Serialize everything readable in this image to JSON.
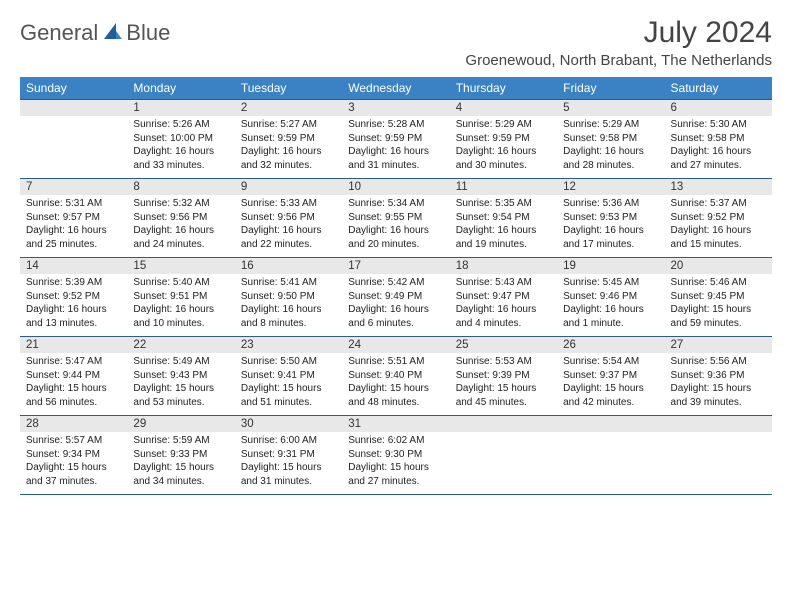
{
  "logo": {
    "general": "General",
    "blue": "Blue"
  },
  "title": "July 2024",
  "location": "Groenewoud, North Brabant, The Netherlands",
  "days": [
    "Sunday",
    "Monday",
    "Tuesday",
    "Wednesday",
    "Thursday",
    "Friday",
    "Saturday"
  ],
  "colors": {
    "header_bg": "#3b82c4",
    "header_text": "#ffffff",
    "daynum_bg": "#e8e8e8",
    "border": "#2a5d8f",
    "logo_gray": "#555555",
    "logo_blue": "#3b7fbf"
  },
  "grid": [
    [
      {
        "num": "",
        "lines": []
      },
      {
        "num": "1",
        "lines": [
          "Sunrise: 5:26 AM",
          "Sunset: 10:00 PM",
          "Daylight: 16 hours",
          "and 33 minutes."
        ]
      },
      {
        "num": "2",
        "lines": [
          "Sunrise: 5:27 AM",
          "Sunset: 9:59 PM",
          "Daylight: 16 hours",
          "and 32 minutes."
        ]
      },
      {
        "num": "3",
        "lines": [
          "Sunrise: 5:28 AM",
          "Sunset: 9:59 PM",
          "Daylight: 16 hours",
          "and 31 minutes."
        ]
      },
      {
        "num": "4",
        "lines": [
          "Sunrise: 5:29 AM",
          "Sunset: 9:59 PM",
          "Daylight: 16 hours",
          "and 30 minutes."
        ]
      },
      {
        "num": "5",
        "lines": [
          "Sunrise: 5:29 AM",
          "Sunset: 9:58 PM",
          "Daylight: 16 hours",
          "and 28 minutes."
        ]
      },
      {
        "num": "6",
        "lines": [
          "Sunrise: 5:30 AM",
          "Sunset: 9:58 PM",
          "Daylight: 16 hours",
          "and 27 minutes."
        ]
      }
    ],
    [
      {
        "num": "7",
        "lines": [
          "Sunrise: 5:31 AM",
          "Sunset: 9:57 PM",
          "Daylight: 16 hours",
          "and 25 minutes."
        ]
      },
      {
        "num": "8",
        "lines": [
          "Sunrise: 5:32 AM",
          "Sunset: 9:56 PM",
          "Daylight: 16 hours",
          "and 24 minutes."
        ]
      },
      {
        "num": "9",
        "lines": [
          "Sunrise: 5:33 AM",
          "Sunset: 9:56 PM",
          "Daylight: 16 hours",
          "and 22 minutes."
        ]
      },
      {
        "num": "10",
        "lines": [
          "Sunrise: 5:34 AM",
          "Sunset: 9:55 PM",
          "Daylight: 16 hours",
          "and 20 minutes."
        ]
      },
      {
        "num": "11",
        "lines": [
          "Sunrise: 5:35 AM",
          "Sunset: 9:54 PM",
          "Daylight: 16 hours",
          "and 19 minutes."
        ]
      },
      {
        "num": "12",
        "lines": [
          "Sunrise: 5:36 AM",
          "Sunset: 9:53 PM",
          "Daylight: 16 hours",
          "and 17 minutes."
        ]
      },
      {
        "num": "13",
        "lines": [
          "Sunrise: 5:37 AM",
          "Sunset: 9:52 PM",
          "Daylight: 16 hours",
          "and 15 minutes."
        ]
      }
    ],
    [
      {
        "num": "14",
        "lines": [
          "Sunrise: 5:39 AM",
          "Sunset: 9:52 PM",
          "Daylight: 16 hours",
          "and 13 minutes."
        ]
      },
      {
        "num": "15",
        "lines": [
          "Sunrise: 5:40 AM",
          "Sunset: 9:51 PM",
          "Daylight: 16 hours",
          "and 10 minutes."
        ]
      },
      {
        "num": "16",
        "lines": [
          "Sunrise: 5:41 AM",
          "Sunset: 9:50 PM",
          "Daylight: 16 hours",
          "and 8 minutes."
        ]
      },
      {
        "num": "17",
        "lines": [
          "Sunrise: 5:42 AM",
          "Sunset: 9:49 PM",
          "Daylight: 16 hours",
          "and 6 minutes."
        ]
      },
      {
        "num": "18",
        "lines": [
          "Sunrise: 5:43 AM",
          "Sunset: 9:47 PM",
          "Daylight: 16 hours",
          "and 4 minutes."
        ]
      },
      {
        "num": "19",
        "lines": [
          "Sunrise: 5:45 AM",
          "Sunset: 9:46 PM",
          "Daylight: 16 hours",
          "and 1 minute."
        ]
      },
      {
        "num": "20",
        "lines": [
          "Sunrise: 5:46 AM",
          "Sunset: 9:45 PM",
          "Daylight: 15 hours",
          "and 59 minutes."
        ]
      }
    ],
    [
      {
        "num": "21",
        "lines": [
          "Sunrise: 5:47 AM",
          "Sunset: 9:44 PM",
          "Daylight: 15 hours",
          "and 56 minutes."
        ]
      },
      {
        "num": "22",
        "lines": [
          "Sunrise: 5:49 AM",
          "Sunset: 9:43 PM",
          "Daylight: 15 hours",
          "and 53 minutes."
        ]
      },
      {
        "num": "23",
        "lines": [
          "Sunrise: 5:50 AM",
          "Sunset: 9:41 PM",
          "Daylight: 15 hours",
          "and 51 minutes."
        ]
      },
      {
        "num": "24",
        "lines": [
          "Sunrise: 5:51 AM",
          "Sunset: 9:40 PM",
          "Daylight: 15 hours",
          "and 48 minutes."
        ]
      },
      {
        "num": "25",
        "lines": [
          "Sunrise: 5:53 AM",
          "Sunset: 9:39 PM",
          "Daylight: 15 hours",
          "and 45 minutes."
        ]
      },
      {
        "num": "26",
        "lines": [
          "Sunrise: 5:54 AM",
          "Sunset: 9:37 PM",
          "Daylight: 15 hours",
          "and 42 minutes."
        ]
      },
      {
        "num": "27",
        "lines": [
          "Sunrise: 5:56 AM",
          "Sunset: 9:36 PM",
          "Daylight: 15 hours",
          "and 39 minutes."
        ]
      }
    ],
    [
      {
        "num": "28",
        "lines": [
          "Sunrise: 5:57 AM",
          "Sunset: 9:34 PM",
          "Daylight: 15 hours",
          "and 37 minutes."
        ]
      },
      {
        "num": "29",
        "lines": [
          "Sunrise: 5:59 AM",
          "Sunset: 9:33 PM",
          "Daylight: 15 hours",
          "and 34 minutes."
        ]
      },
      {
        "num": "30",
        "lines": [
          "Sunrise: 6:00 AM",
          "Sunset: 9:31 PM",
          "Daylight: 15 hours",
          "and 31 minutes."
        ]
      },
      {
        "num": "31",
        "lines": [
          "Sunrise: 6:02 AM",
          "Sunset: 9:30 PM",
          "Daylight: 15 hours",
          "and 27 minutes."
        ]
      },
      {
        "num": "",
        "lines": []
      },
      {
        "num": "",
        "lines": []
      },
      {
        "num": "",
        "lines": []
      }
    ]
  ]
}
